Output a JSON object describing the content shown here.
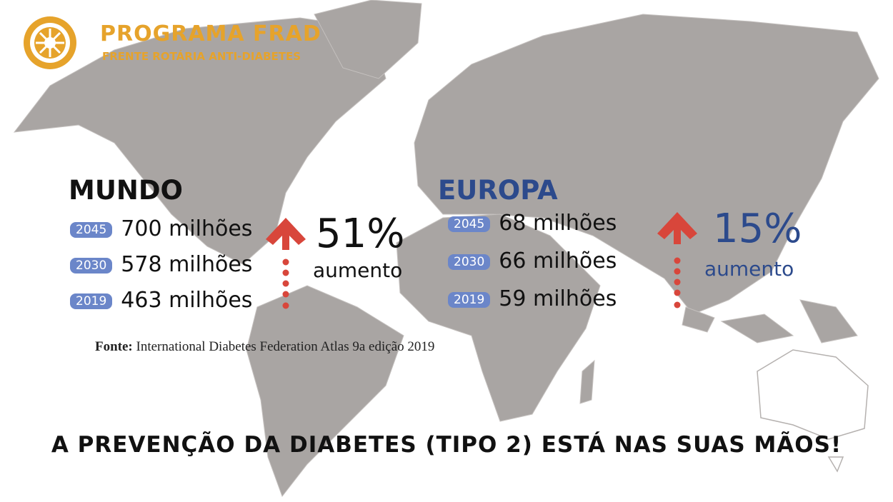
{
  "header": {
    "title": "PROGRAMA FRAD",
    "subtitle": "FRENTE ROTÁRIA ANTI-DIABETES"
  },
  "world": {
    "title": "MUNDO",
    "rows": [
      {
        "year": "2045",
        "value": "700 milhões"
      },
      {
        "year": "2030",
        "value": "578 milhões"
      },
      {
        "year": "2019",
        "value": "463 milhões"
      }
    ],
    "increase": "51%",
    "increase_label": "aumento"
  },
  "europe": {
    "title": "EUROPA",
    "rows": [
      {
        "year": "2045",
        "value": "68 milhões"
      },
      {
        "year": "2030",
        "value": "66 milhões"
      },
      {
        "year": "2019",
        "value": "59 milhões"
      }
    ],
    "increase": "15%",
    "increase_label": "aumento"
  },
  "source": {
    "label": "Fonte:",
    "text": "International Diabetes Federation Atlas 9a edição 2019"
  },
  "footer": "A PREVENÇÃO  DA DIABETES (TIPO 2) ESTÁ NAS SUAS MÃOS!"
}
